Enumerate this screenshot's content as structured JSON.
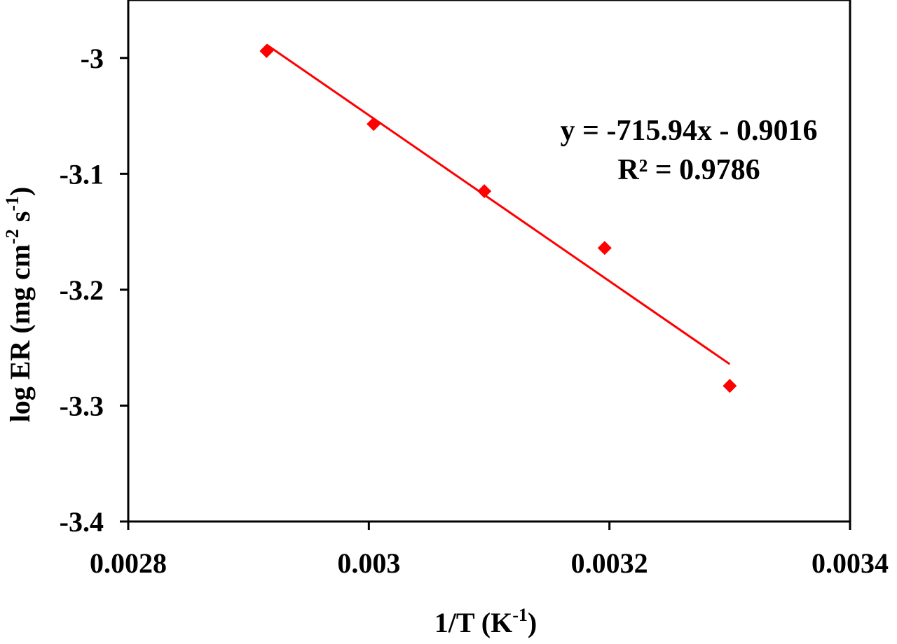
{
  "chart_data": {
    "type": "scatter",
    "title": "",
    "xlabel": "1/T (K-1)",
    "xlabel_parts": {
      "base": "1/T (K",
      "sup": "-1",
      "tail": ")"
    },
    "ylabel": "log ER (mg cm-2 s-1)",
    "ylabel_parts": {
      "base": "log ER (mg cm",
      "sup1": "-2",
      "mid": " s",
      "sup2": "-1",
      "tail": ")"
    },
    "xlim": [
      0.0028,
      0.0034
    ],
    "ylim": [
      -3.4,
      -2.95
    ],
    "x_ticks": [
      0.0028,
      0.003,
      0.0032,
      0.0034
    ],
    "x_tick_labels": [
      "0.0028",
      "0.003",
      "0.0032",
      "0.0034"
    ],
    "y_ticks": [
      -3.0,
      -3.1,
      -3.2,
      -3.3,
      -3.4
    ],
    "y_tick_labels": [
      "-3",
      "-3.1",
      "-3.2",
      "-3.3",
      "-3.4"
    ],
    "grid": false,
    "legend": "none",
    "series": [
      {
        "marker": "diamond",
        "color": "#ff0000",
        "points": [
          {
            "x": 0.002915,
            "y": -2.994
          },
          {
            "x": 0.003004,
            "y": -3.057
          },
          {
            "x": 0.003096,
            "y": -3.115
          },
          {
            "x": 0.003196,
            "y": -3.164
          },
          {
            "x": 0.0033,
            "y": -3.283
          }
        ]
      }
    ],
    "trendline": {
      "type": "linear",
      "color": "#ff0000",
      "slope": -715.94,
      "intercept": -0.9016,
      "x_range": [
        0.002915,
        0.0033
      ]
    },
    "annotations": [
      "y = -715.94x - 0.9016",
      "R² = 0.9786"
    ]
  }
}
